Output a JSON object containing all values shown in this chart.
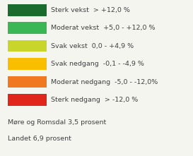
{
  "legend_items": [
    {
      "color": "#1a6b2e",
      "label": "Sterk vekst  > +12,0 %"
    },
    {
      "color": "#3cb554",
      "label": "Moderat vekst  +5,0 - +12,0 %"
    },
    {
      "color": "#c8d62b",
      "label": "Svak vekst  0,0 - +4,9 %"
    },
    {
      "color": "#f9be00",
      "label": "Svak nedgang  -0,1 - -4,9 %"
    },
    {
      "color": "#f07820",
      "label": "Moderat nedgang  -5,0 - -12,0%"
    },
    {
      "color": "#e0251b",
      "label": "Sterk nedgang  > -12,0 %"
    }
  ],
  "footnote_lines": [
    "Møre og Romsdal 3,5 prosent",
    "Landet 6,9 prosent"
  ],
  "background_color": "#f5f5f0",
  "text_color": "#404040",
  "footnote_color": "#404040",
  "label_fontsize": 6.8,
  "footnote_fontsize": 6.8
}
